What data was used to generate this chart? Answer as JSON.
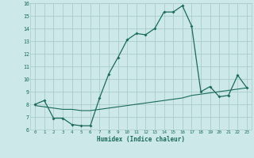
{
  "xlabel": "Humidex (Indice chaleur)",
  "bg_color": "#cce8e8",
  "grid_color": "#aacccc",
  "line_color": "#1a6b5a",
  "xlim": [
    -0.5,
    23.5
  ],
  "ylim": [
    6,
    16
  ],
  "xticks": [
    0,
    1,
    2,
    3,
    4,
    5,
    6,
    7,
    8,
    9,
    10,
    11,
    12,
    13,
    14,
    15,
    16,
    17,
    18,
    19,
    20,
    21,
    22,
    23
  ],
  "yticks": [
    6,
    7,
    8,
    9,
    10,
    11,
    12,
    13,
    14,
    15,
    16
  ],
  "line1_x": [
    0,
    1,
    2,
    3,
    4,
    5,
    6,
    7,
    8,
    9,
    10,
    11,
    12,
    13,
    14,
    15,
    16,
    17,
    18,
    19,
    20,
    21,
    22,
    23
  ],
  "line1_y": [
    8.0,
    8.3,
    6.9,
    6.9,
    6.4,
    6.3,
    6.3,
    8.5,
    10.4,
    11.7,
    13.1,
    13.6,
    13.5,
    14.0,
    15.3,
    15.3,
    15.8,
    14.2,
    9.0,
    9.4,
    8.6,
    8.7,
    10.3,
    9.3
  ],
  "line2_x": [
    0,
    1,
    2,
    3,
    4,
    5,
    6,
    7,
    8,
    9,
    10,
    11,
    12,
    13,
    14,
    15,
    16,
    17,
    18,
    19,
    20,
    21,
    22,
    23
  ],
  "line2_y": [
    7.9,
    7.8,
    7.7,
    7.6,
    7.6,
    7.5,
    7.5,
    7.6,
    7.7,
    7.8,
    7.9,
    8.0,
    8.1,
    8.2,
    8.3,
    8.4,
    8.5,
    8.7,
    8.8,
    8.9,
    9.0,
    9.1,
    9.2,
    9.3
  ]
}
